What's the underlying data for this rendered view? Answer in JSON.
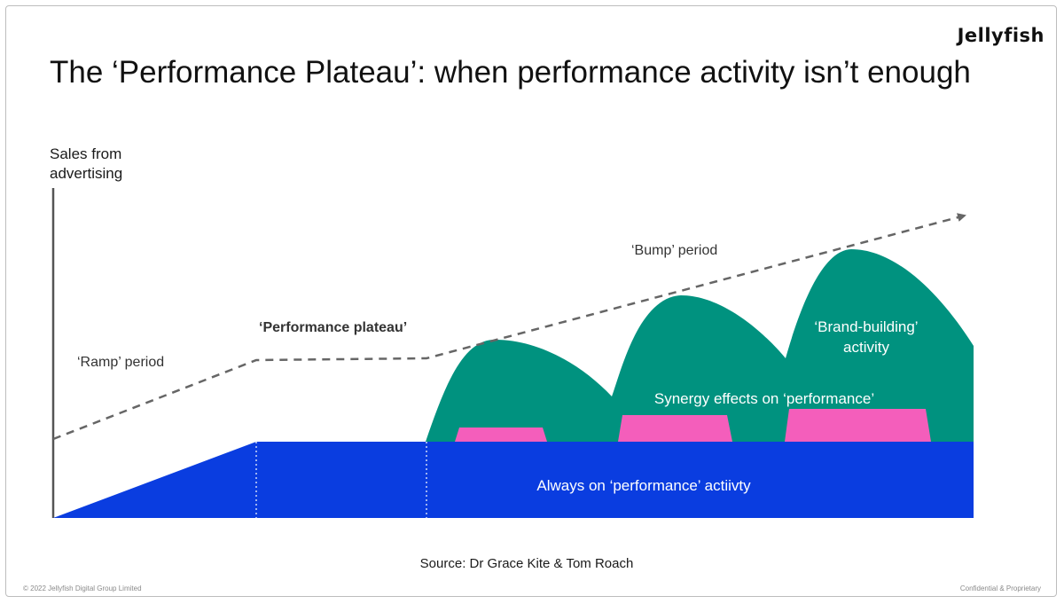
{
  "header": {
    "logo_text": "Jellyfish",
    "title": "The ‘Performance Plateau’: when performance activity isn’t enough"
  },
  "diagram": {
    "y_axis_label_line1": "Sales from",
    "y_axis_label_line2": "advertising",
    "labels": {
      "ramp_period": "‘Ramp’ period",
      "performance_plateau": "‘Performance plateau’",
      "bump_period": "‘Bump’ period",
      "brand_building_line1": "‘Brand-building’",
      "brand_building_line2": "activity",
      "synergy_effects": "Synergy effects on ‘performance’",
      "always_on": "Always on ‘performance’ actiivty"
    },
    "colors": {
      "always_on": "#0a3de0",
      "brand_building": "#00927f",
      "synergy": "#f45ebb",
      "trend_line": "#666666",
      "axis": "#555555"
    }
  },
  "source": "Source: Dr Grace Kite & Tom Roach",
  "footer": {
    "copyright": "© 2022 Jellyfish Digital Group Limited",
    "confidential": "Confidential & Proprietary"
  }
}
